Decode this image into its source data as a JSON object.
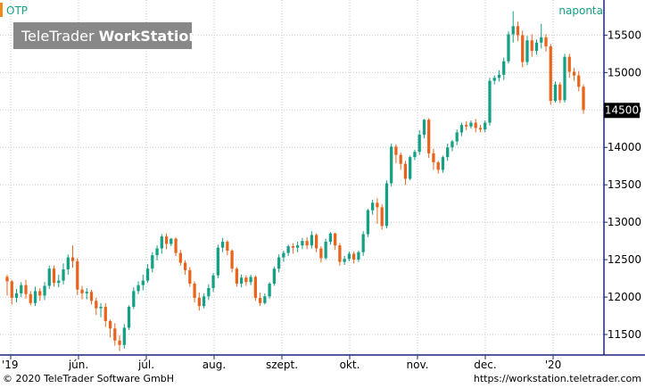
{
  "header": {
    "symbol": "OTP",
    "period": "naponta",
    "brand_regular": "TeleTrader ",
    "brand_bold": "WorkStation"
  },
  "footer": {
    "copyright": "© 2020 TeleTrader Software GmbH",
    "url": "https://workstation.teletrader.com"
  },
  "colors": {
    "up": "#13a085",
    "down": "#e8641c",
    "symbol_accent": "#f08a1c",
    "grid": "#c9c9c9",
    "axis": "#1a237e",
    "period_text": "#13a085"
  },
  "chart_data": {
    "type": "candlestick",
    "x_ticks": [
      "'19",
      "jún.",
      "júl.",
      "aug.",
      "szept.",
      "okt.",
      "nov.",
      "dec.",
      "'20"
    ],
    "y_ticks": [
      11500,
      12000,
      12500,
      13000,
      13500,
      14000,
      14500,
      15000,
      15500
    ],
    "ylim": [
      11250,
      15850
    ],
    "last_value": "14500",
    "grid": true,
    "candles": [
      [
        12270,
        12210,
        12020,
        12300
      ],
      [
        12210,
        11990,
        11900,
        12230
      ],
      [
        11990,
        12050,
        11930,
        12110
      ],
      [
        12050,
        12160,
        12000,
        12200
      ],
      [
        12160,
        12040,
        11980,
        12230
      ],
      [
        12040,
        11920,
        11890,
        12080
      ],
      [
        11920,
        12080,
        11880,
        12140
      ],
      [
        12080,
        12020,
        11950,
        12120
      ],
      [
        12020,
        12150,
        11960,
        12200
      ],
      [
        12150,
        12380,
        12110,
        12420
      ],
      [
        12380,
        12190,
        12140,
        12420
      ],
      [
        12190,
        12220,
        12130,
        12300
      ],
      [
        12220,
        12370,
        12170,
        12450
      ],
      [
        12370,
        12530,
        12300,
        12570
      ],
      [
        12530,
        12480,
        12390,
        12690
      ],
      [
        12480,
        12100,
        12030,
        12520
      ],
      [
        12100,
        12050,
        11970,
        12150
      ],
      [
        12050,
        12070,
        11970,
        12120
      ],
      [
        12070,
        11950,
        11900,
        12100
      ],
      [
        11950,
        11850,
        11760,
        11990
      ],
      [
        11850,
        11870,
        11730,
        11920
      ],
      [
        11870,
        11680,
        11600,
        11920
      ],
      [
        11680,
        11580,
        11460,
        11700
      ],
      [
        11580,
        11420,
        11350,
        11650
      ],
      [
        11420,
        11360,
        11280,
        11490
      ],
      [
        11360,
        11590,
        11310,
        11640
      ],
      [
        11590,
        11870,
        11560,
        11890
      ],
      [
        11870,
        12080,
        11840,
        12130
      ],
      [
        12080,
        12160,
        12040,
        12210
      ],
      [
        12160,
        12220,
        12090,
        12300
      ],
      [
        12220,
        12380,
        12190,
        12440
      ],
      [
        12380,
        12560,
        12330,
        12600
      ],
      [
        12560,
        12650,
        12490,
        12690
      ],
      [
        12650,
        12810,
        12580,
        12840
      ],
      [
        12810,
        12710,
        12640,
        12850
      ],
      [
        12710,
        12780,
        12680,
        12790
      ],
      [
        12780,
        12590,
        12550,
        12800
      ],
      [
        12590,
        12460,
        12420,
        12630
      ],
      [
        12460,
        12360,
        12300,
        12490
      ],
      [
        12360,
        12180,
        12140,
        12400
      ],
      [
        12180,
        11990,
        11930,
        12210
      ],
      [
        11990,
        11880,
        11820,
        12060
      ],
      [
        11880,
        12010,
        11850,
        12050
      ],
      [
        12010,
        12120,
        11960,
        12170
      ],
      [
        12120,
        12290,
        12070,
        12320
      ],
      [
        12290,
        12660,
        12250,
        12700
      ],
      [
        12660,
        12740,
        12600,
        12790
      ],
      [
        12740,
        12620,
        12560,
        12760
      ],
      [
        12620,
        12380,
        12330,
        12640
      ],
      [
        12380,
        12180,
        12140,
        12400
      ],
      [
        12180,
        12260,
        12130,
        12300
      ],
      [
        12260,
        12200,
        12150,
        12290
      ],
      [
        12200,
        12270,
        12160,
        12300
      ],
      [
        12270,
        11990,
        11950,
        12290
      ],
      [
        11990,
        11920,
        11880,
        12060
      ],
      [
        11920,
        12010,
        11900,
        12050
      ],
      [
        12010,
        12180,
        11980,
        12200
      ],
      [
        12180,
        12380,
        12150,
        12410
      ],
      [
        12380,
        12530,
        12330,
        12570
      ],
      [
        12530,
        12590,
        12470,
        12620
      ],
      [
        12590,
        12680,
        12550,
        12700
      ],
      [
        12680,
        12660,
        12580,
        12720
      ],
      [
        12660,
        12690,
        12600,
        12740
      ],
      [
        12690,
        12750,
        12640,
        12790
      ],
      [
        12750,
        12690,
        12640,
        12800
      ],
      [
        12690,
        12830,
        12650,
        12880
      ],
      [
        12830,
        12650,
        12600,
        12850
      ],
      [
        12650,
        12520,
        12460,
        12680
      ],
      [
        12520,
        12740,
        12500,
        12780
      ],
      [
        12740,
        12850,
        12700,
        12870
      ],
      [
        12850,
        12690,
        12630,
        12860
      ],
      [
        12690,
        12470,
        12420,
        12720
      ],
      [
        12470,
        12510,
        12430,
        12550
      ],
      [
        12510,
        12580,
        12480,
        12610
      ],
      [
        12580,
        12500,
        12450,
        12610
      ],
      [
        12500,
        12600,
        12470,
        12620
      ],
      [
        12600,
        12840,
        12550,
        12880
      ],
      [
        12840,
        13160,
        12800,
        13180
      ],
      [
        13160,
        13260,
        13100,
        13300
      ],
      [
        13260,
        13200,
        12980,
        13320
      ],
      [
        13200,
        12950,
        12900,
        13240
      ],
      [
        12950,
        13520,
        12920,
        13560
      ],
      [
        13520,
        14010,
        13480,
        14050
      ],
      [
        14010,
        13900,
        13790,
        14040
      ],
      [
        13900,
        13780,
        13700,
        13930
      ],
      [
        13780,
        13580,
        13500,
        13820
      ],
      [
        13580,
        13870,
        13560,
        13890
      ],
      [
        13870,
        13940,
        13830,
        13970
      ],
      [
        13940,
        14170,
        13900,
        14230
      ],
      [
        14170,
        14370,
        14120,
        14380
      ],
      [
        14370,
        13920,
        13860,
        14390
      ],
      [
        13920,
        13800,
        13700,
        13980
      ],
      [
        13800,
        13700,
        13650,
        13820
      ],
      [
        13700,
        13870,
        13660,
        13890
      ],
      [
        13870,
        14000,
        13820,
        14050
      ],
      [
        14000,
        14080,
        13950,
        14100
      ],
      [
        14080,
        14200,
        14030,
        14240
      ],
      [
        14200,
        14300,
        14150,
        14330
      ],
      [
        14300,
        14280,
        14230,
        14350
      ],
      [
        14280,
        14330,
        14250,
        14360
      ],
      [
        14330,
        14260,
        14200,
        14380
      ],
      [
        14260,
        14240,
        14200,
        14300
      ],
      [
        14240,
        14330,
        14200,
        14360
      ],
      [
        14330,
        14890,
        14290,
        14930
      ],
      [
        14890,
        14930,
        14840,
        14960
      ],
      [
        14930,
        14970,
        14880,
        15030
      ],
      [
        14970,
        15150,
        14900,
        15200
      ],
      [
        15150,
        15510,
        15120,
        15550
      ],
      [
        15510,
        15620,
        15400,
        15820
      ],
      [
        15620,
        15500,
        15420,
        15680
      ],
      [
        15500,
        15140,
        15070,
        15560
      ],
      [
        15140,
        15430,
        15100,
        15490
      ],
      [
        15430,
        15290,
        15210,
        15510
      ],
      [
        15290,
        15400,
        15240,
        15440
      ],
      [
        15400,
        15470,
        15320,
        15650
      ],
      [
        15470,
        15350,
        15280,
        15510
      ],
      [
        15350,
        14620,
        14570,
        15380
      ],
      [
        14620,
        14840,
        14600,
        14880
      ],
      [
        14840,
        14630,
        14590,
        14870
      ],
      [
        14630,
        15210,
        14600,
        15250
      ],
      [
        15210,
        15010,
        14930,
        15250
      ],
      [
        15010,
        14960,
        14890,
        15060
      ],
      [
        14960,
        14810,
        14750,
        15020
      ],
      [
        14810,
        14500,
        14450,
        14840
      ]
    ]
  }
}
